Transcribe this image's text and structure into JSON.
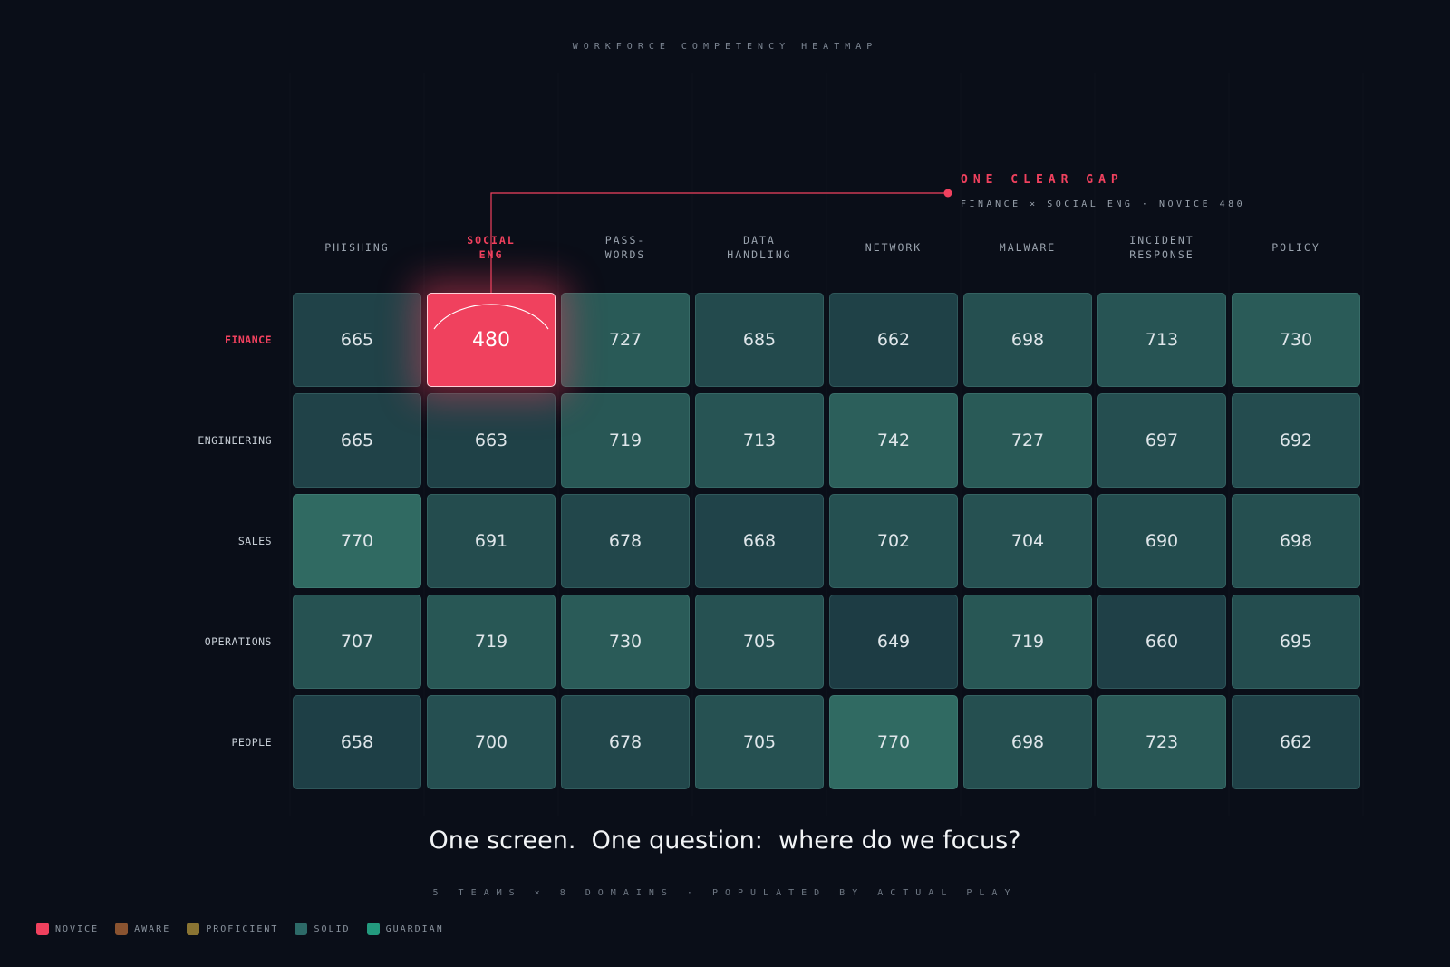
{
  "chart_data": {
    "type": "heatmap",
    "title": "WORKFORCE COMPETENCY HEATMAP",
    "columns": [
      "PHISHING",
      "SOCIAL ENG",
      "PASS-WORDS",
      "DATA HANDLING",
      "NETWORK",
      "MALWARE",
      "INCIDENT RESPONSE",
      "POLICY"
    ],
    "rows": [
      "FINANCE",
      "ENGINEERING",
      "SALES",
      "OPERATIONS",
      "PEOPLE"
    ],
    "values": [
      [
        665,
        480,
        727,
        685,
        662,
        698,
        713,
        730
      ],
      [
        665,
        663,
        719,
        713,
        742,
        727,
        697,
        692
      ],
      [
        770,
        691,
        678,
        668,
        702,
        704,
        690,
        698
      ],
      [
        707,
        719,
        730,
        705,
        649,
        719,
        660,
        695
      ],
      [
        658,
        700,
        678,
        705,
        770,
        698,
        723,
        662
      ]
    ],
    "color_scale": [
      "#1d3c44",
      "#306a62"
    ],
    "highlight": {
      "row": "FINANCE",
      "column": "SOCIAL ENG",
      "title": "ONE CLEAR GAP",
      "detail": "FINANCE × SOCIAL ENG · NOVICE 480"
    },
    "headline": "One screen.  One question:  where do we focus?",
    "footnote": "5 TEAMS × 8 DOMAINS · POPULATED BY ACTUAL PLAY",
    "legend": [
      {
        "name": "NOVICE",
        "color": "#f0415e"
      },
      {
        "name": "AWARE",
        "color": "#8a5330"
      },
      {
        "name": "PROFICIENT",
        "color": "#8a7433"
      },
      {
        "name": "SOLID",
        "color": "#2d6a68"
      },
      {
        "name": "GUARDIAN",
        "color": "#239a7e"
      }
    ]
  }
}
